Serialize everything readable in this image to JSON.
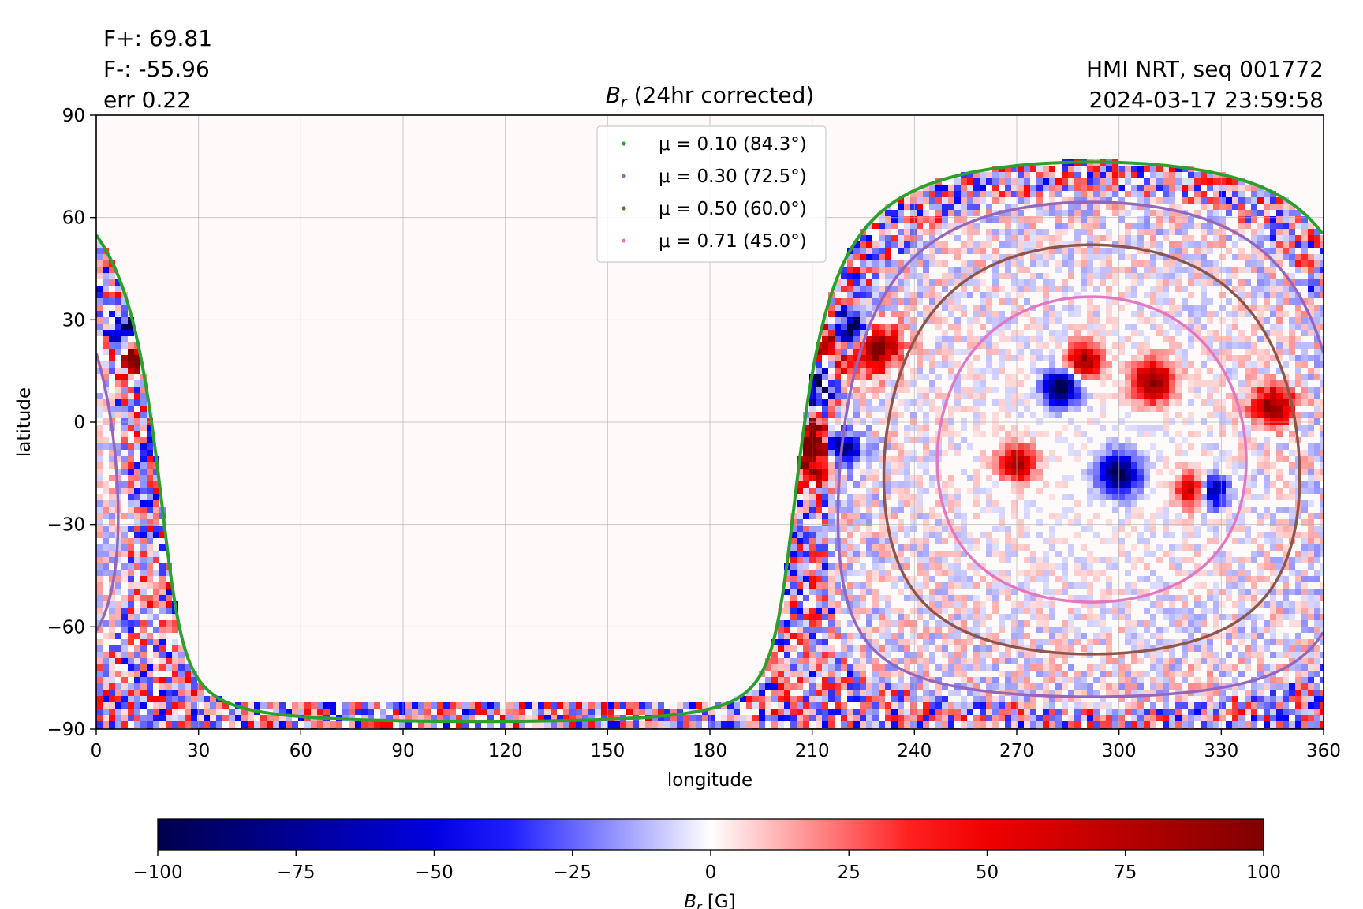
{
  "header": {
    "flux_pos": "F+: 69.81",
    "flux_neg": "F-: -55.96",
    "err": "err 0.22",
    "source": "HMI NRT, seq 001772",
    "timestamp": "2024-03-17 23:59:58",
    "title_symbol": "B",
    "title_sub": "r",
    "title_rest": " (24hr corrected)"
  },
  "chart_data": {
    "type": "heatmap",
    "title": "B_r (24hr corrected)",
    "xlabel": "longitude",
    "ylabel": "latitude",
    "xlim": [
      0,
      360
    ],
    "ylim": [
      -90,
      90
    ],
    "xticks": [
      "0",
      "30",
      "60",
      "90",
      "120",
      "150",
      "180",
      "210",
      "240",
      "270",
      "300",
      "330",
      "360"
    ],
    "yticks": [
      "90",
      "60",
      "30",
      "0",
      "−30",
      "−60",
      "−90"
    ],
    "grid": true,
    "legend_position": "top-center",
    "disk_center": {
      "lon": 292,
      "lat": -8
    },
    "contours": [
      {
        "label": "μ = 0.10 (84.3°)",
        "mu": 0.1,
        "angle_deg": 84.3,
        "color": "#2ca02c"
      },
      {
        "label": "μ = 0.30 (72.5°)",
        "mu": 0.3,
        "angle_deg": 72.5,
        "color": "#9467bd"
      },
      {
        "label": "μ = 0.50 (60.0°)",
        "mu": 0.5,
        "angle_deg": 60.0,
        "color": "#8c564b"
      },
      {
        "label": "μ = 0.71 (45.0°)",
        "mu": 0.71,
        "angle_deg": 45.0,
        "color": "#e377c2"
      }
    ],
    "colorbar": {
      "label_symbol": "B",
      "label_sub": "r",
      "label_rest": " [G]",
      "vmin": -100,
      "vmax": 100,
      "colormap": "seismic",
      "ticks": [
        "−100",
        "−75",
        "−50",
        "−25",
        "0",
        "25",
        "50",
        "75",
        "100"
      ]
    }
  }
}
